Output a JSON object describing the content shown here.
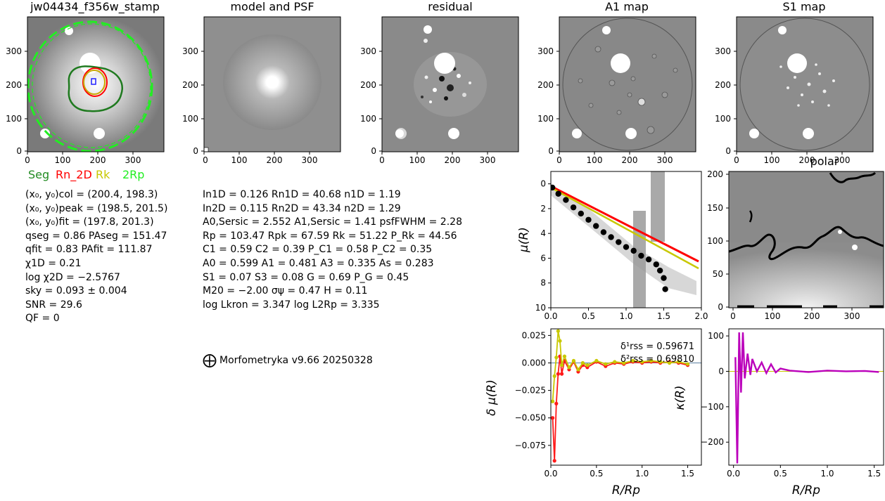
{
  "panels": {
    "stamp": {
      "title": "jw04434_f356w_stamp"
    },
    "model": {
      "title": "model and PSF"
    },
    "residual": {
      "title": "residual"
    },
    "a1": {
      "title": "A1 map"
    },
    "s1": {
      "title": "S1 map"
    },
    "polar": {
      "title": "polar"
    }
  },
  "image_ticks": {
    "x": [
      "0",
      "100",
      "200",
      "300"
    ],
    "y": [
      "0",
      "100",
      "200",
      "300"
    ]
  },
  "legend": [
    {
      "label": "Seg",
      "color": "#228b22"
    },
    {
      "label": "Rn_2D",
      "color": "#ff0000"
    },
    {
      "label": "Rk",
      "color": "#c8c800"
    },
    {
      "label": "2Rp",
      "color": "#22ee22"
    }
  ],
  "stats_left": [
    "(x₀, y₀)col = (200.4, 198.3)",
    "(x₀, y₀)peak = (198.5, 201.5)",
    "(x₀, y₀)fit = (197.8, 201.3)",
    "qseg = 0.86 PAseg = 151.47",
    "qfit = 0.83 PAfit = 111.87",
    "χ1D = 0.21",
    "log χ2D = −2.5767",
    "sky = 0.093 ± 0.004",
    "SNR = 29.6",
    "QF = 0"
  ],
  "stats_mid": [
    "In1D = 0.126   Rn1D = 40.68   n1D = 1.19",
    "In2D = 0.115   Rn2D = 43.34   n2D = 1.29",
    "A0,Sersic = 2.552   A1,Sersic = 1.41   psfFWHM = 2.28",
    "Rp = 103.47   Rpk = 67.59   Rk = 51.22   P_Rk = 44.56",
    "C1 = 0.59   C2 = 0.39   P_C1 = 0.58   P_C2 = 0.35",
    "A0 = 0.599   A1 = 0.481   A3 = 0.335   As = 0.283",
    "S1 = 0.07   S3 = 0.08   G = 0.69   P_G = 0.45",
    "M20 = −2.00   σψ = 0.47   H = 0.11",
    "log Lkron = 3.347   log L2Rp = 3.335"
  ],
  "credit": "Morfometryka v9.66 20250328",
  "chart_data": [
    {
      "type": "scatter",
      "name": "mu-profile",
      "xlabel": "",
      "ylabel": "μ(R)",
      "xlim": [
        0.0,
        2.0
      ],
      "ylim": [
        10,
        -1
      ],
      "x_ticks": [
        "0.0",
        "0.5",
        "1.0",
        "1.5",
        "2.0"
      ],
      "y_ticks": [
        "0",
        "2",
        "4",
        "6",
        "8",
        "10"
      ],
      "series": [
        {
          "color": "#000000",
          "x": [
            0.02,
            0.1,
            0.2,
            0.3,
            0.4,
            0.5,
            0.6,
            0.7,
            0.8,
            0.9,
            1.0,
            1.1,
            1.2,
            1.3,
            1.4,
            1.45,
            1.5,
            1.52
          ],
          "y": [
            0.3,
            0.8,
            1.3,
            1.9,
            2.4,
            2.9,
            3.4,
            3.9,
            4.3,
            4.7,
            5.1,
            5.4,
            5.8,
            6.1,
            6.5,
            7.0,
            7.6,
            8.5
          ]
        }
      ]
    },
    {
      "type": "line",
      "name": "delta-mu",
      "xlabel": "R/Rp",
      "ylabel": "δ μ(R)",
      "xlim": [
        0.0,
        1.65
      ],
      "ylim": [
        -0.093,
        0.031
      ],
      "x_ticks": [
        "0.0",
        "0.5",
        "1.0",
        "1.5"
      ],
      "y_ticks": [
        "0.025",
        "0.000",
        "−0.025",
        "−0.050",
        "−0.075"
      ],
      "annotations": [
        "δ¹rss = 0.59671",
        "δ²rss = 0.69810"
      ],
      "series": [
        {
          "color": "#ff1a1a",
          "x": [
            0.02,
            0.04,
            0.06,
            0.08,
            0.1,
            0.12,
            0.15,
            0.2,
            0.25,
            0.3,
            0.35,
            0.4,
            0.5,
            0.6,
            0.7,
            0.8,
            0.9,
            1.0,
            1.1,
            1.2,
            1.3,
            1.4,
            1.5
          ],
          "y": [
            -0.05,
            -0.089,
            -0.037,
            -0.01,
            0.006,
            -0.01,
            0.002,
            -0.006,
            0.001,
            -0.008,
            -0.002,
            -0.004,
            0.001,
            -0.003,
            0.0,
            -0.001,
            0.001,
            0.0,
            0.001,
            0.0,
            0.001,
            0.0,
            -0.002
          ]
        },
        {
          "color": "#c8c800",
          "x": [
            0.02,
            0.04,
            0.06,
            0.08,
            0.1,
            0.12,
            0.15,
            0.2,
            0.25,
            0.3,
            0.35,
            0.4,
            0.5,
            0.6,
            0.7,
            0.8,
            0.9,
            1.0,
            1.1,
            1.2,
            1.3,
            1.4,
            1.5
          ],
          "y": [
            -0.035,
            -0.012,
            0.005,
            0.029,
            0.02,
            -0.002,
            0.006,
            -0.004,
            0.002,
            -0.006,
            0.0,
            -0.002,
            0.002,
            -0.001,
            0.001,
            0.0,
            0.002,
            0.001,
            0.002,
            0.001,
            0.0,
            0.001,
            -0.001
          ]
        }
      ]
    },
    {
      "type": "line",
      "name": "kappa",
      "xlabel": "R/Rp",
      "ylabel": "κ(R)",
      "xlim": [
        -0.05,
        1.6
      ],
      "ylim": [
        -265,
        120
      ],
      "x_ticks": [
        "0.0",
        "0.5",
        "1.0",
        "1.5"
      ],
      "y_ticks": [
        "100",
        "0",
        "−100",
        "−200"
      ],
      "series": [
        {
          "color": "#bb00bb",
          "x": [
            0.02,
            0.04,
            0.06,
            0.08,
            0.1,
            0.12,
            0.15,
            0.18,
            0.2,
            0.25,
            0.3,
            0.35,
            0.4,
            0.45,
            0.5,
            0.6,
            0.8,
            1.0,
            1.2,
            1.4,
            1.55
          ],
          "y": [
            40,
            -260,
            110,
            -60,
            110,
            -20,
            50,
            -10,
            35,
            0,
            25,
            -5,
            20,
            -3,
            8,
            2,
            -2,
            2,
            0,
            1,
            -2
          ]
        }
      ]
    }
  ]
}
